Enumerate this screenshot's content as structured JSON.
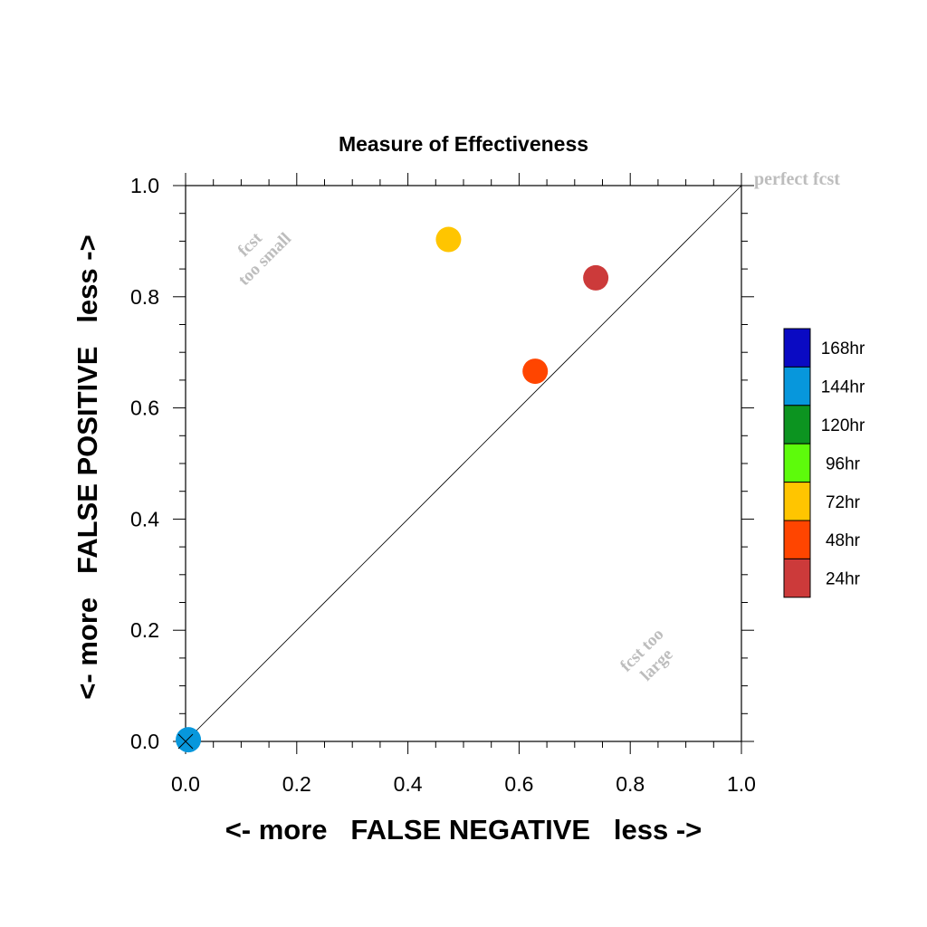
{
  "chart_data": {
    "type": "scatter",
    "title": "Measure of Effectiveness",
    "xlabel": "<- more   FALSE NEGATIVE   less ->",
    "ylabel": "<- more   FALSE POSITIVE   less ->",
    "xlim": [
      0,
      1
    ],
    "ylim": [
      0,
      1
    ],
    "xticks": [
      "0.0",
      "0.2",
      "0.4",
      "0.6",
      "0.8",
      "1.0"
    ],
    "yticks": [
      "0.0",
      "0.2",
      "0.4",
      "0.6",
      "0.8",
      "1.0"
    ],
    "grid": false,
    "diagonal": true,
    "annotations": {
      "perfect": "perfect fcst",
      "small_line1": "fcst",
      "small_line2": "too small",
      "large_line1": "fcst too",
      "large_line2": "large"
    },
    "legend": {
      "placement": "right",
      "entries": [
        {
          "label": "168hr",
          "color": "#0a0ac3"
        },
        {
          "label": "144hr",
          "color": "#0797dc"
        },
        {
          "label": "120hr",
          "color": "#0c9420"
        },
        {
          "label": "96hr",
          "color": "#5dfb0b"
        },
        {
          "label": "72hr",
          "color": "#ffc500"
        },
        {
          "label": "48hr",
          "color": "#ff4500"
        },
        {
          "label": "24hr",
          "color": "#cc3a3a"
        }
      ]
    },
    "points": [
      {
        "series": "72hr",
        "x": 0.473,
        "y": 0.903,
        "color": "#ffc500"
      },
      {
        "series": "24hr",
        "x": 0.738,
        "y": 0.834,
        "color": "#cc3a3a"
      },
      {
        "series": "48hr",
        "x": 0.629,
        "y": 0.666,
        "color": "#ff4500"
      },
      {
        "series": "144hr",
        "x": 0.005,
        "y": 0.003,
        "color": "#0797dc"
      }
    ]
  }
}
